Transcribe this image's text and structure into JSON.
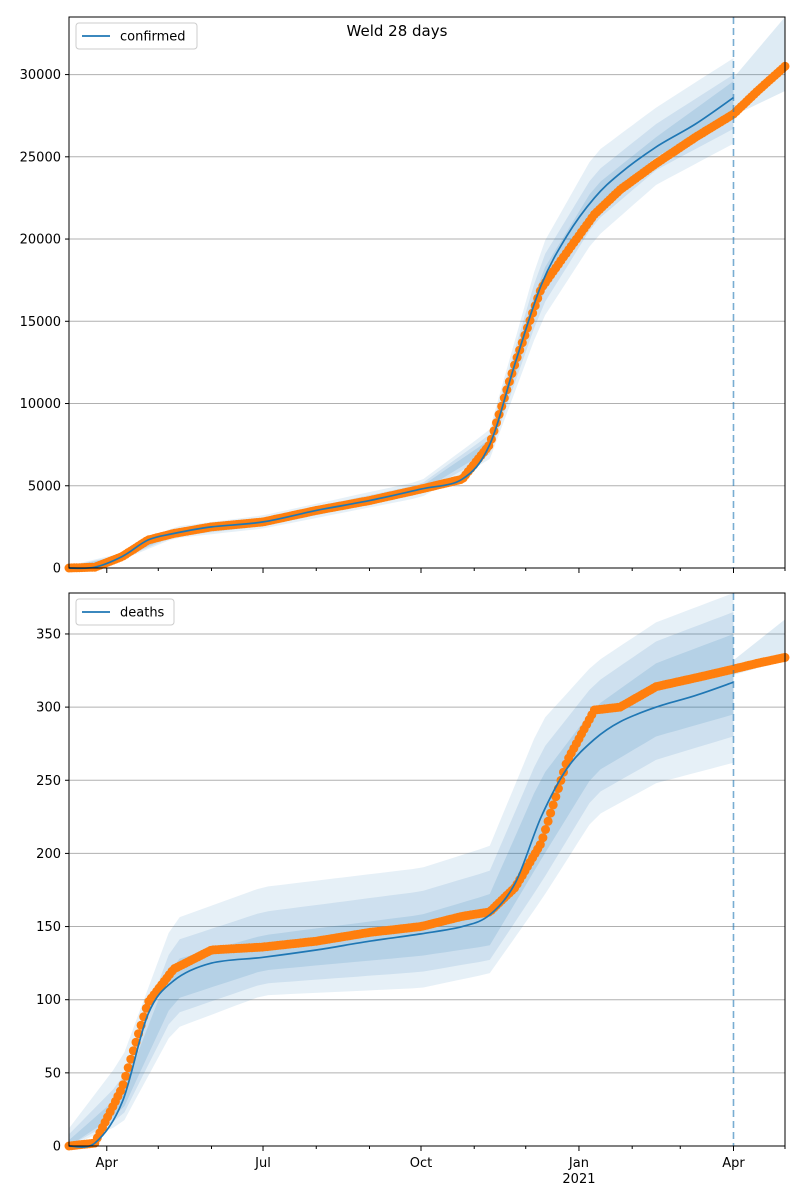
{
  "figure": {
    "title": "Weld 28 days",
    "year_label": "2021",
    "x_tick_labels": [
      "Apr",
      "Jul",
      "Oct",
      "Jan",
      "Apr"
    ]
  },
  "colors": {
    "line": "#1f77b4",
    "points": "#ff7f0e",
    "band": "#1f77b4",
    "grid": "#b0b0b0",
    "vline": "#1f77b4"
  },
  "chart_data": [
    {
      "type": "line",
      "legend": "confirmed",
      "legend_position": "top-left",
      "grid": "horizontal",
      "xlim": [
        "2020-03-10",
        "2021-05-01"
      ],
      "ylim": [
        0,
        33500
      ],
      "yticks": [
        0,
        5000,
        10000,
        15000,
        20000,
        25000,
        30000
      ],
      "forecast_start": "2021-04-01",
      "fit": {
        "name": "confirmed",
        "x": [
          "2020-03-10",
          "2020-03-25",
          "2020-04-10",
          "2020-04-25",
          "2020-05-10",
          "2020-06-01",
          "2020-07-01",
          "2020-08-01",
          "2020-09-01",
          "2020-10-01",
          "2020-10-25",
          "2020-11-10",
          "2020-11-25",
          "2020-12-10",
          "2020-12-25",
          "2021-01-10",
          "2021-01-25",
          "2021-02-15",
          "2021-03-10",
          "2021-04-01"
        ],
        "y": [
          0,
          50,
          700,
          1700,
          2100,
          2500,
          2800,
          3500,
          4100,
          4800,
          5400,
          7500,
          12500,
          17200,
          20200,
          22500,
          24000,
          25600,
          27000,
          28600
        ]
      },
      "observed": {
        "x": [
          "2020-03-10",
          "2020-03-25",
          "2020-04-10",
          "2020-04-25",
          "2020-05-10",
          "2020-06-01",
          "2020-07-01",
          "2020-08-01",
          "2020-09-01",
          "2020-10-01",
          "2020-10-25",
          "2020-11-10",
          "2020-11-25",
          "2020-12-10",
          "2020-12-25",
          "2021-01-10",
          "2021-01-25",
          "2021-02-15",
          "2021-03-10",
          "2021-04-01",
          "2021-04-15",
          "2021-05-01"
        ],
        "y": [
          0,
          50,
          700,
          1700,
          2100,
          2500,
          2800,
          3500,
          4100,
          4800,
          5400,
          7500,
          12500,
          17000,
          19200,
          21500,
          23000,
          24600,
          26200,
          27600,
          29000,
          30500
        ]
      },
      "bands": [
        {
          "level": "outer",
          "x": [
            "2020-03-10",
            "2020-04-10",
            "2020-05-10",
            "2020-07-01",
            "2020-10-01",
            "2020-11-10",
            "2020-12-10",
            "2021-01-10",
            "2021-02-15",
            "2021-04-01"
          ],
          "lower": [
            0,
            500,
            1800,
            2400,
            4300,
            6600,
            15000,
            20000,
            23300,
            25800
          ],
          "upper": [
            150,
            900,
            2500,
            3200,
            5300,
            8400,
            19500,
            25200,
            28000,
            31000
          ]
        },
        {
          "level": "middle",
          "x": [
            "2020-03-10",
            "2020-04-10",
            "2020-05-10",
            "2020-07-01",
            "2020-10-01",
            "2020-11-10",
            "2020-12-10",
            "2021-01-10",
            "2021-02-15",
            "2021-04-01"
          ],
          "lower": [
            0,
            580,
            1900,
            2550,
            4500,
            6900,
            15800,
            21000,
            24200,
            26700
          ],
          "upper": [
            100,
            820,
            2350,
            3050,
            5100,
            8100,
            18700,
            24000,
            27000,
            30000
          ]
        },
        {
          "level": "inner",
          "x": [
            "2020-03-10",
            "2020-04-10",
            "2020-05-10",
            "2020-07-01",
            "2020-10-01",
            "2020-11-10",
            "2020-12-10",
            "2021-01-10",
            "2021-02-15",
            "2021-04-01"
          ],
          "lower": [
            0,
            640,
            2000,
            2700,
            4650,
            7200,
            16500,
            21800,
            25000,
            27600
          ],
          "upper": [
            70,
            760,
            2200,
            2900,
            4950,
            7800,
            17900,
            23200,
            26200,
            29600
          ]
        }
      ],
      "forecast_band": {
        "x": [
          "2021-04-01",
          "2021-05-01"
        ],
        "lower": [
          27500,
          29000
        ],
        "upper": [
          29800,
          33500
        ]
      }
    },
    {
      "type": "line",
      "legend": "deaths",
      "legend_position": "top-left",
      "grid": "horizontal",
      "xlim": [
        "2020-03-10",
        "2021-05-01"
      ],
      "ylim": [
        0,
        378
      ],
      "yticks": [
        0,
        50,
        100,
        150,
        200,
        250,
        300,
        350
      ],
      "forecast_start": "2021-04-01",
      "fit": {
        "name": "deaths",
        "x": [
          "2020-03-10",
          "2020-03-25",
          "2020-04-10",
          "2020-04-25",
          "2020-05-10",
          "2020-06-01",
          "2020-07-01",
          "2020-08-01",
          "2020-09-01",
          "2020-10-01",
          "2020-10-25",
          "2020-11-10",
          "2020-11-25",
          "2020-12-10",
          "2020-12-25",
          "2021-01-10",
          "2021-01-25",
          "2021-02-15",
          "2021-03-10",
          "2021-04-01"
        ],
        "y": [
          0,
          2,
          30,
          90,
          113,
          125,
          129,
          134,
          140,
          145,
          150,
          158,
          180,
          225,
          258,
          278,
          290,
          300,
          308,
          317
        ]
      },
      "observed": {
        "x": [
          "2020-03-10",
          "2020-03-25",
          "2020-04-10",
          "2020-04-25",
          "2020-05-10",
          "2020-06-01",
          "2020-07-01",
          "2020-08-01",
          "2020-09-01",
          "2020-10-01",
          "2020-10-25",
          "2020-11-10",
          "2020-11-25",
          "2020-12-10",
          "2020-12-25",
          "2021-01-10",
          "2021-01-25",
          "2021-02-15",
          "2021-03-10",
          "2021-04-01",
          "2021-04-15",
          "2021-05-01"
        ],
        "y": [
          0,
          2,
          40,
          98,
          121,
          134,
          136,
          140,
          146,
          150,
          157,
          160,
          177,
          207,
          263,
          298,
          300,
          314,
          320,
          326,
          330,
          334
        ]
      },
      "bands": [
        {
          "level": "outer",
          "x": [
            "2020-03-10",
            "2020-04-10",
            "2020-05-10",
            "2020-07-01",
            "2020-10-01",
            "2020-11-10",
            "2020-12-10",
            "2021-01-10",
            "2021-02-15",
            "2021-04-01"
          ],
          "lower": [
            0,
            15,
            80,
            103,
            108,
            118,
            168,
            225,
            248,
            262
          ],
          "upper": [
            12,
            60,
            155,
            177,
            190,
            205,
            290,
            330,
            358,
            378
          ]
        },
        {
          "level": "middle",
          "x": [
            "2020-03-10",
            "2020-04-10",
            "2020-05-10",
            "2020-07-01",
            "2020-10-01",
            "2020-11-10",
            "2020-12-10",
            "2021-01-10",
            "2021-02-15",
            "2021-04-01"
          ],
          "lower": [
            0,
            20,
            90,
            111,
            119,
            127,
            180,
            240,
            264,
            280
          ],
          "upper": [
            8,
            45,
            140,
            160,
            174,
            188,
            270,
            316,
            345,
            365
          ]
        },
        {
          "level": "inner",
          "x": [
            "2020-03-10",
            "2020-04-10",
            "2020-05-10",
            "2020-07-01",
            "2020-10-01",
            "2020-11-10",
            "2020-12-10",
            "2021-01-10",
            "2021-02-15",
            "2021-04-01"
          ],
          "lower": [
            0,
            24,
            100,
            120,
            130,
            137,
            196,
            255,
            280,
            295
          ],
          "upper": [
            4,
            36,
            127,
            144,
            158,
            172,
            252,
            300,
            330,
            350
          ]
        }
      ],
      "forecast_band": {
        "x": [
          "2021-04-01",
          "2021-05-01"
        ],
        "lower": [
          322,
          332
        ],
        "upper": [
          332,
          360
        ]
      }
    }
  ]
}
